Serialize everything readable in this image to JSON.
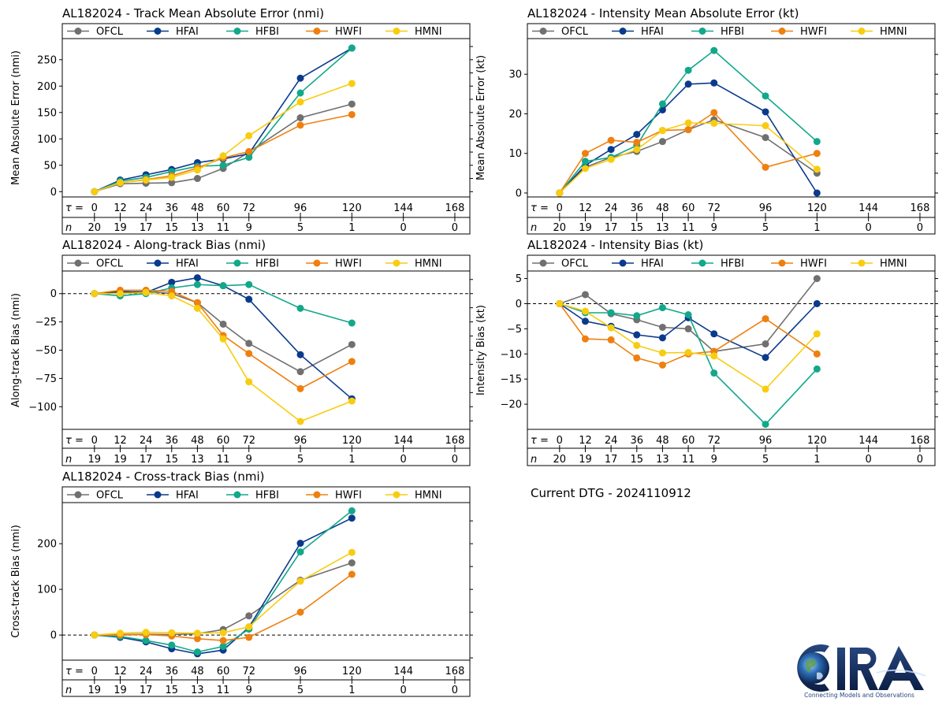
{
  "series_meta": [
    {
      "key": "OFCL",
      "color": "#707070"
    },
    {
      "key": "HFAI",
      "color": "#0a3a8c"
    },
    {
      "key": "HFBI",
      "color": "#12a88a"
    },
    {
      "key": "HWFI",
      "color": "#ee8010"
    },
    {
      "key": "HMNI",
      "color": "#f8cc10"
    }
  ],
  "chart_data": [
    {
      "id": "track-mae",
      "type": "line",
      "title": "AL182024 - Track Mean Absolute Error (nmi)",
      "ylabel": "Mean Absolute Error (nmi)",
      "xlabel": "",
      "x": [
        0,
        12,
        24,
        36,
        48,
        60,
        72,
        96,
        120
      ],
      "xlim": [
        -15,
        175
      ],
      "ylim": [
        -10,
        290
      ],
      "yticks": [
        0,
        50,
        100,
        150,
        200,
        250
      ],
      "ytick_labels": [
        "0",
        "50",
        "100",
        "150",
        "200",
        "250"
      ],
      "zero_line": false,
      "tau_label": "τ =",
      "tau_values": [
        "0",
        "12",
        "24",
        "36",
        "48",
        "60",
        "72",
        "96",
        "120",
        "144",
        "168"
      ],
      "n_label": "n",
      "n_values": [
        "20",
        "19",
        "17",
        "15",
        "13",
        "11",
        "9",
        "5",
        "1",
        "0",
        "0"
      ],
      "series": [
        {
          "name": "OFCL",
          "values": [
            0,
            15,
            16,
            17,
            25,
            44,
            75,
            140,
            166
          ]
        },
        {
          "name": "HFAI",
          "values": [
            0,
            22,
            32,
            42,
            55,
            62,
            72,
            215,
            272
          ]
        },
        {
          "name": "HFBI",
          "values": [
            0,
            20,
            27,
            38,
            48,
            50,
            65,
            187,
            272
          ]
        },
        {
          "name": "HWFI",
          "values": [
            0,
            17,
            23,
            30,
            45,
            64,
            76,
            126,
            146
          ]
        },
        {
          "name": "HMNI",
          "values": [
            0,
            17,
            22,
            27,
            41,
            68,
            106,
            170,
            205
          ]
        }
      ]
    },
    {
      "id": "intensity-mae",
      "type": "line",
      "title": "AL182024 - Intensity Mean Absolute Error (kt)",
      "ylabel": "Mean Absolute Error (kt)",
      "xlabel": "",
      "x": [
        0,
        12,
        24,
        36,
        48,
        60,
        72,
        96,
        120
      ],
      "xlim": [
        -15,
        175
      ],
      "ylim": [
        -1,
        39
      ],
      "yticks": [
        0,
        10,
        20,
        30
      ],
      "ytick_labels": [
        "0",
        "10",
        "20",
        "30"
      ],
      "zero_line": false,
      "tau_label": "τ =",
      "tau_values": [
        "0",
        "12",
        "24",
        "36",
        "48",
        "60",
        "72",
        "96",
        "120",
        "144",
        "168"
      ],
      "n_label": "n",
      "n_values": [
        "20",
        "19",
        "17",
        "15",
        "13",
        "11",
        "9",
        "5",
        "1",
        "0",
        "0"
      ],
      "series": [
        {
          "name": "OFCL",
          "values": [
            0,
            6.5,
            9,
            10.5,
            13,
            16,
            18.5,
            14,
            5
          ]
        },
        {
          "name": "HFAI",
          "values": [
            0,
            7,
            11,
            14.8,
            21,
            27.5,
            27.8,
            20.5,
            0
          ]
        },
        {
          "name": "HFBI",
          "values": [
            0,
            8,
            9,
            12,
            22.5,
            31,
            36,
            24.5,
            13
          ]
        },
        {
          "name": "HWFI",
          "values": [
            0,
            10,
            13.3,
            12.8,
            15.8,
            16,
            20.3,
            6.5,
            10
          ]
        },
        {
          "name": "HMNI",
          "values": [
            0,
            6.2,
            8.5,
            11,
            15.8,
            17.7,
            17.6,
            17,
            6
          ]
        }
      ]
    },
    {
      "id": "along-track-bias",
      "type": "line",
      "title": "AL182024 - Along-track Bias (nmi)",
      "ylabel": "Along-track Bias (nmi)",
      "xlabel": "",
      "x": [
        0,
        12,
        24,
        36,
        48,
        60,
        72,
        96,
        120
      ],
      "xlim": [
        -15,
        175
      ],
      "ylim": [
        -120,
        20
      ],
      "yticks": [
        0,
        -25,
        -50,
        -75,
        -100
      ],
      "ytick_labels": [
        "0",
        "−25",
        "−50",
        "−75",
        "−100"
      ],
      "zero_line": true,
      "tau_label": "τ =",
      "tau_values": [
        "0",
        "12",
        "24",
        "36",
        "48",
        "60",
        "72",
        "96",
        "120",
        "144",
        "168"
      ],
      "n_label": "n",
      "n_values": [
        "19",
        "19",
        "17",
        "15",
        "13",
        "11",
        "9",
        "5",
        "1",
        "0",
        "0"
      ],
      "series": [
        {
          "name": "OFCL",
          "values": [
            0,
            1,
            2,
            0,
            -8,
            -27,
            -44,
            -69,
            -45
          ]
        },
        {
          "name": "HFAI",
          "values": [
            0,
            2,
            1,
            10,
            14,
            7,
            -5,
            -54,
            -93
          ]
        },
        {
          "name": "HFBI",
          "values": [
            0,
            -2,
            0,
            5,
            8,
            7,
            8,
            -13,
            -26
          ]
        },
        {
          "name": "HWFI",
          "values": [
            0,
            3,
            3,
            2,
            -8,
            -37,
            -53,
            -84,
            -60
          ]
        },
        {
          "name": "HMNI",
          "values": [
            0,
            0,
            1,
            -2,
            -13,
            -40,
            -78,
            -113,
            -95
          ]
        }
      ]
    },
    {
      "id": "intensity-bias",
      "type": "line",
      "title": "AL182024 - Intensity Bias (kt)",
      "ylabel": "Intensity Bias (kt)",
      "xlabel": "",
      "x": [
        0,
        12,
        24,
        36,
        48,
        60,
        72,
        96,
        120
      ],
      "xlim": [
        -15,
        175
      ],
      "ylim": [
        -25,
        6.5
      ],
      "yticks": [
        5,
        0,
        -5,
        -10,
        -15,
        -20
      ],
      "ytick_labels": [
        "5",
        "0",
        "−5",
        "−10",
        "−15",
        "−20"
      ],
      "zero_line": true,
      "tau_label": "τ =",
      "tau_values": [
        "0",
        "12",
        "24",
        "36",
        "48",
        "60",
        "72",
        "96",
        "120",
        "144",
        "168"
      ],
      "n_label": "n",
      "n_values": [
        "20",
        "19",
        "17",
        "15",
        "13",
        "11",
        "9",
        "5",
        "1",
        "0",
        "0"
      ],
      "series": [
        {
          "name": "OFCL",
          "values": [
            0,
            1.8,
            -2,
            -3.2,
            -4.7,
            -5,
            -9.5,
            -8,
            5
          ]
        },
        {
          "name": "HFAI",
          "values": [
            0,
            -3.5,
            -4.5,
            -6.2,
            -6.8,
            -2.8,
            -6,
            -10.7,
            0
          ]
        },
        {
          "name": "HFBI",
          "values": [
            0,
            -1.8,
            -1.8,
            -2.4,
            -0.8,
            -2.2,
            -13.8,
            -24,
            -13
          ]
        },
        {
          "name": "HWFI",
          "values": [
            0,
            -7,
            -7.2,
            -10.8,
            -12.2,
            -10,
            -9.5,
            -3,
            -10
          ]
        },
        {
          "name": "HMNI",
          "values": [
            0,
            -1.5,
            -4.8,
            -8.3,
            -9.8,
            -9.7,
            -10.4,
            -17,
            -6
          ]
        }
      ]
    },
    {
      "id": "cross-track-bias",
      "type": "line",
      "title": "AL182024 - Cross-track Bias (nmi)",
      "ylabel": "Cross-track Bias (nmi)",
      "xlabel": "",
      "x": [
        0,
        12,
        24,
        36,
        48,
        60,
        72,
        96,
        120
      ],
      "xlim": [
        -15,
        175
      ],
      "ylim": [
        -55,
        290
      ],
      "yticks": [
        0,
        100,
        200
      ],
      "ytick_labels": [
        "0",
        "100",
        "200"
      ],
      "zero_line": true,
      "tau_label": "τ =",
      "tau_values": [
        "0",
        "12",
        "24",
        "36",
        "48",
        "60",
        "72",
        "96",
        "120",
        "144",
        "168"
      ],
      "n_label": "n",
      "n_values": [
        "19",
        "19",
        "17",
        "15",
        "13",
        "11",
        "9",
        "5",
        "1",
        "0",
        "0"
      ],
      "series": [
        {
          "name": "OFCL",
          "values": [
            0,
            1,
            2,
            1,
            3,
            12,
            42,
            120,
            158
          ]
        },
        {
          "name": "HFAI",
          "values": [
            0,
            -5,
            -15,
            -30,
            -41,
            -33,
            17,
            201,
            256
          ]
        },
        {
          "name": "HFBI",
          "values": [
            0,
            -3,
            -12,
            -22,
            -37,
            -25,
            13,
            182,
            272
          ]
        },
        {
          "name": "HWFI",
          "values": [
            0,
            0,
            1,
            -2,
            -8,
            -12,
            -5,
            50,
            133
          ]
        },
        {
          "name": "HMNI",
          "values": [
            0,
            4,
            6,
            5,
            4,
            5,
            18,
            118,
            181
          ]
        }
      ]
    }
  ],
  "footer": {
    "current_dtg": "Current DTG - 2024110912"
  },
  "logo": {
    "word": "CIRA",
    "tagline": "Connecting Models and Observations"
  }
}
